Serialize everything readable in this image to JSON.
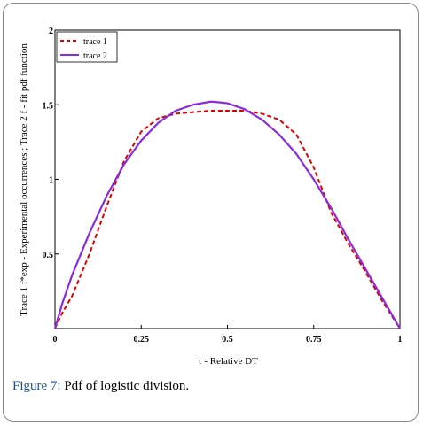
{
  "caption": {
    "label": "Figure 7:",
    "text": " Pdf of logistic division."
  },
  "chart_data": {
    "type": "line",
    "xlabel": "τ - Relative  DT",
    "ylabel": "Trace 1  f*exp - Experimental occurrences ; Trace 2  f - fit pdf function",
    "xlim": [
      0,
      1
    ],
    "ylim": [
      0,
      2
    ],
    "xticks": [
      0,
      0.25,
      0.5,
      0.75,
      1
    ],
    "xtick_labels": [
      "0",
      "0.25",
      "0.5",
      "0.75",
      "1"
    ],
    "yticks": [
      0.5,
      1,
      1.5,
      2
    ],
    "ytick_labels": [
      "0.5",
      "1",
      "1.5",
      "2"
    ],
    "grid": false,
    "legend_position": "top-left",
    "series": [
      {
        "name": "trace 1",
        "color": "#e00000",
        "style": "dashed",
        "x": [
          0,
          0.02,
          0.05,
          0.1,
          0.15,
          0.2,
          0.25,
          0.3,
          0.35,
          0.4,
          0.45,
          0.5,
          0.55,
          0.6,
          0.65,
          0.7,
          0.75,
          0.8,
          0.85,
          0.9,
          0.95,
          1
        ],
        "y": [
          0,
          0.1,
          0.22,
          0.5,
          0.82,
          1.12,
          1.32,
          1.41,
          1.44,
          1.45,
          1.46,
          1.46,
          1.46,
          1.44,
          1.4,
          1.3,
          1.08,
          0.78,
          0.57,
          0.38,
          0.18,
          0
        ]
      },
      {
        "name": "trace 2",
        "color": "#8a2be2",
        "style": "solid",
        "x": [
          0,
          0.02,
          0.05,
          0.1,
          0.15,
          0.2,
          0.25,
          0.3,
          0.35,
          0.4,
          0.45,
          0.46,
          0.5,
          0.55,
          0.6,
          0.65,
          0.7,
          0.75,
          0.8,
          0.85,
          0.9,
          0.95,
          1
        ],
        "y": [
          0,
          0.16,
          0.36,
          0.64,
          0.89,
          1.1,
          1.26,
          1.38,
          1.46,
          1.5,
          1.52,
          1.52,
          1.51,
          1.47,
          1.4,
          1.3,
          1.17,
          1.0,
          0.81,
          0.6,
          0.4,
          0.2,
          0
        ]
      }
    ]
  }
}
